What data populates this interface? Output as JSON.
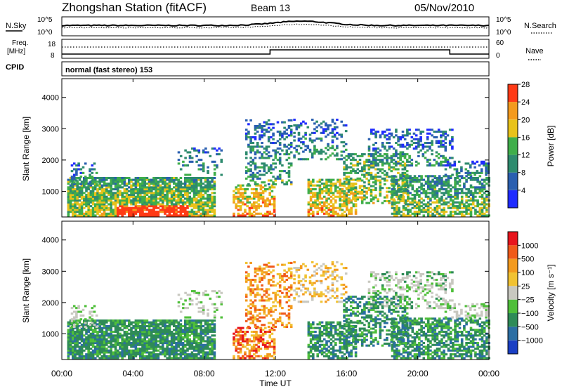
{
  "header": {
    "title": "Zhongshan Station (fitACF)",
    "beam": "Beam 13",
    "date": "05/Nov/2010"
  },
  "noise_panel": {
    "left_label": "N.Sky",
    "right_label": "N.Search",
    "left_ticks": [
      "10^5",
      "10^0"
    ],
    "right_ticks": [
      "10^5",
      "10^0"
    ]
  },
  "freq_panel": {
    "left_label_1": "Freq.",
    "left_label_2": "[MHz]",
    "right_label": "Nave",
    "left_ticks": [
      "18",
      "8"
    ],
    "right_ticks": [
      "60",
      "0"
    ]
  },
  "cpid": {
    "label": "CPID",
    "mode_text": "normal (fast stereo) 153"
  },
  "chart_data": [
    {
      "type": "heatmap",
      "name": "power",
      "ylabel": "Slant Range [km]",
      "yticks": [
        1000,
        2000,
        3000,
        4000
      ],
      "ylim": [
        180,
        4600
      ],
      "xlim": [
        0,
        24
      ],
      "xticks": [
        "00:00",
        "04:00",
        "08:00",
        "12:00",
        "16:00",
        "20:00",
        "00:00"
      ],
      "colorbar": {
        "label": "Power [dB]",
        "tick_labels": [
          "4",
          "8",
          "12",
          "16",
          "20",
          "24",
          "28"
        ],
        "colors": [
          "#1f2bff",
          "#2a5fb0",
          "#2e8b6e",
          "#3fae4a",
          "#e8c21a",
          "#f39a1e",
          "#ff3a16"
        ]
      }
    },
    {
      "type": "heatmap",
      "name": "velocity",
      "ylabel": "Slant Range [km]",
      "yticks": [
        1000,
        2000,
        3000,
        4000
      ],
      "ylim": [
        180,
        4600
      ],
      "xlim": [
        0,
        24
      ],
      "xticks": [
        "00:00",
        "04:00",
        "08:00",
        "12:00",
        "16:00",
        "20:00",
        "00:00"
      ],
      "xlabel": "Time UT",
      "colorbar": {
        "label": "Velocity [m s⁻¹]",
        "tick_labels": [
          "1000",
          "500",
          "100",
          "25",
          "−25",
          "−100",
          "−500",
          "−1000"
        ],
        "colors": [
          "#1a3fc4",
          "#2b6ea3",
          "#2e8b57",
          "#4fbf3a",
          "#c8c8c0",
          "#f1c232",
          "#f39a1e",
          "#f05a1a",
          "#e8141c"
        ]
      }
    }
  ]
}
